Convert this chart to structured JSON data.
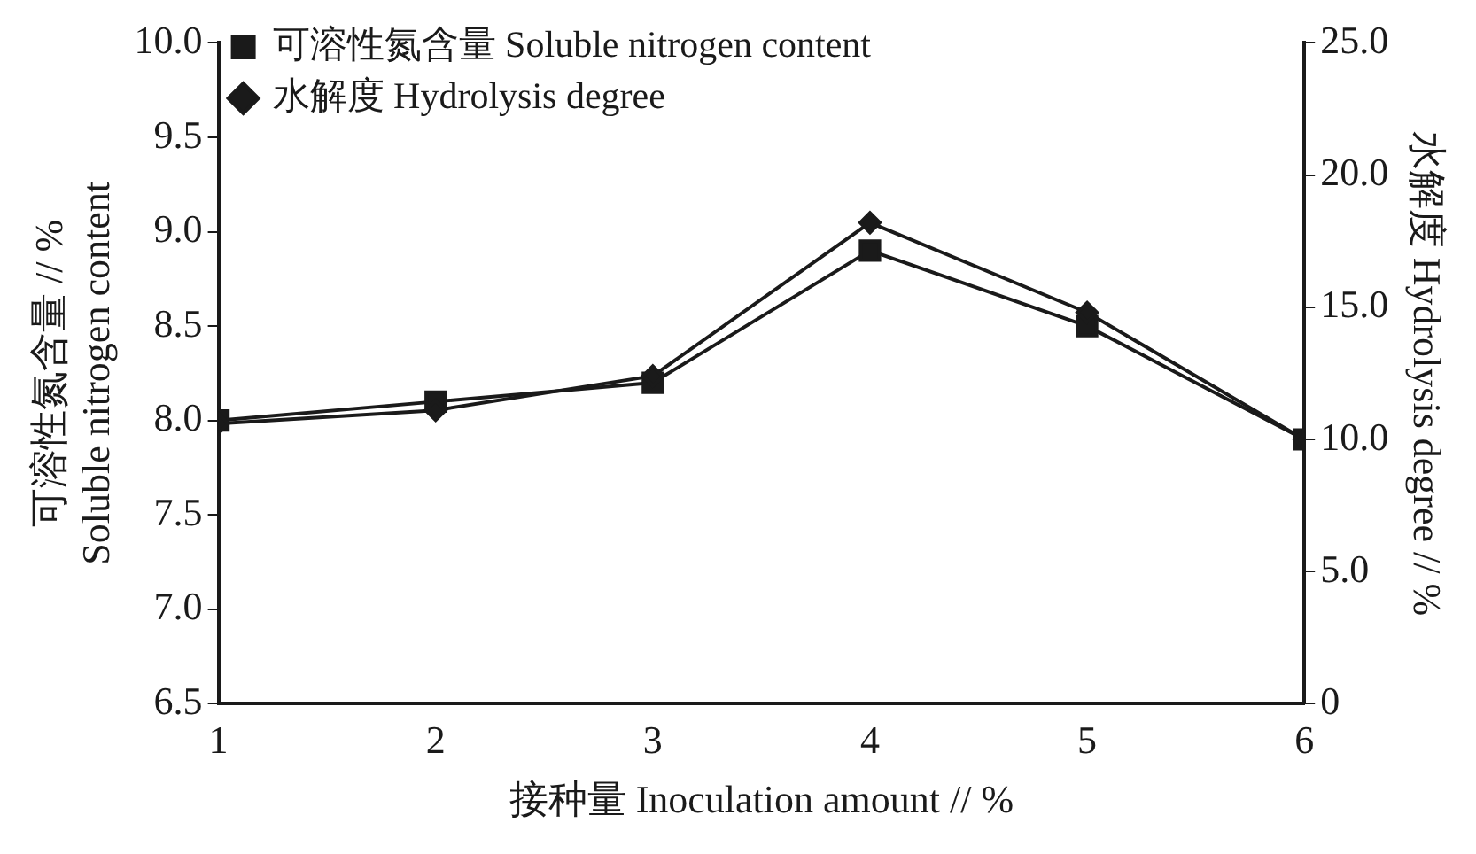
{
  "chart_data": {
    "type": "line",
    "xlabel": "接种量 Inoculation amount // %",
    "ylabel": "可溶性氮含量 // %\nSoluble nitrogen content",
    "y2label": "水解度 Hydrolysis degree // %",
    "x": [
      1,
      2,
      3,
      4,
      5,
      6
    ],
    "xlim": [
      1,
      6
    ],
    "xticks": [
      1,
      2,
      3,
      4,
      5,
      6
    ],
    "ylim": [
      6.5,
      10
    ],
    "yticks": [
      {
        "value": 6.5,
        "label": "6.5"
      },
      {
        "value": 7,
        "label": "7.0"
      },
      {
        "value": 7.5,
        "label": "7.5"
      },
      {
        "value": 8,
        "label": "8.0"
      },
      {
        "value": 8.5,
        "label": "8.5"
      },
      {
        "value": 9,
        "label": "9.0"
      },
      {
        "value": 9.5,
        "label": "9.5"
      },
      {
        "value": 10,
        "label": "10.0"
      }
    ],
    "y2lim": [
      0,
      25
    ],
    "y2ticks": [
      0,
      {
        "value": 5,
        "label": "5.0"
      },
      {
        "value": 10,
        "label": "10.0"
      },
      {
        "value": 15,
        "label": "15.0"
      },
      {
        "value": 20,
        "label": "20.0"
      },
      {
        "value": 25,
        "label": "25.0"
      }
    ],
    "series": [
      {
        "name": "可溶性氮含量 Soluble nitrogen content",
        "color": "#1a1a1a",
        "marker": "square",
        "values": [
          8.0,
          8.1,
          8.2,
          8.9,
          8.5,
          7.9
        ]
      },
      {
        "name": "水解度 Hydrolysis degree",
        "color": "#1a1a1a",
        "marker": "diamond",
        "axis": "y2",
        "values": [
          10.6,
          11.1,
          12.4,
          18.2,
          14.8,
          10.0
        ]
      }
    ],
    "grid": false,
    "legend": "top left",
    "line_style": "solid"
  }
}
